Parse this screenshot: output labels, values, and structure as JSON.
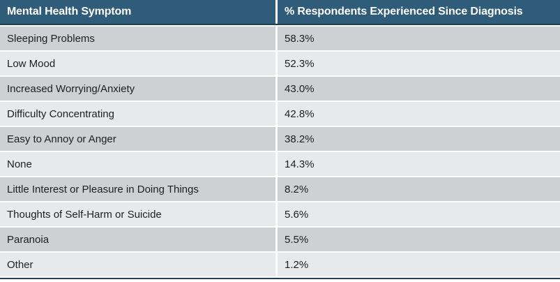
{
  "table": {
    "columns": [
      {
        "label": "Mental Health Symptom"
      },
      {
        "label": "% Respondents Experienced Since Diagnosis"
      }
    ],
    "rows": [
      {
        "symptom": "Sleeping Problems",
        "value": "58.3%"
      },
      {
        "symptom": "Low Mood",
        "value": "52.3%"
      },
      {
        "symptom": "Increased Worrying/Anxiety",
        "value": "43.0%"
      },
      {
        "symptom": "Difficulty Concentrating",
        "value": "42.8%"
      },
      {
        "symptom": "Easy to Annoy or Anger",
        "value": "38.2%"
      },
      {
        "symptom": "None",
        "value": "14.3%"
      },
      {
        "symptom": "Little Interest or Pleasure in Doing Things",
        "value": "8.2%"
      },
      {
        "symptom": "Thoughts of Self-Harm or Suicide",
        "value": "5.6%"
      },
      {
        "symptom": "Paranoia",
        "value": "5.5%"
      },
      {
        "symptom": "Other",
        "value": "1.2%"
      }
    ]
  },
  "chart_data": {
    "type": "table",
    "title": "",
    "columns": [
      "Mental Health Symptom",
      "% Respondents Experienced Since Diagnosis"
    ],
    "categories": [
      "Sleeping Problems",
      "Low Mood",
      "Increased Worrying/Anxiety",
      "Difficulty Concentrating",
      "Easy to Annoy or Anger",
      "None",
      "Little Interest or Pleasure in Doing Things",
      "Thoughts of Self-Harm or Suicide",
      "Paranoia",
      "Other"
    ],
    "values": [
      58.3,
      52.3,
      43.0,
      42.8,
      38.2,
      14.3,
      8.2,
      5.6,
      5.5,
      1.2
    ],
    "value_labels": [
      "58.3%",
      "52.3%",
      "43.0%",
      "42.8%",
      "38.2%",
      "14.3%",
      "8.2%",
      "5.6%",
      "5.5%",
      "1.2%"
    ]
  },
  "colors": {
    "header_bg": "#2F5C79",
    "header_border": "#1F3E52",
    "row_odd": "#CDD1D4",
    "row_even": "#E7EAEC",
    "body_text": "#1E1E1E",
    "header_text": "#FFFFFF"
  }
}
